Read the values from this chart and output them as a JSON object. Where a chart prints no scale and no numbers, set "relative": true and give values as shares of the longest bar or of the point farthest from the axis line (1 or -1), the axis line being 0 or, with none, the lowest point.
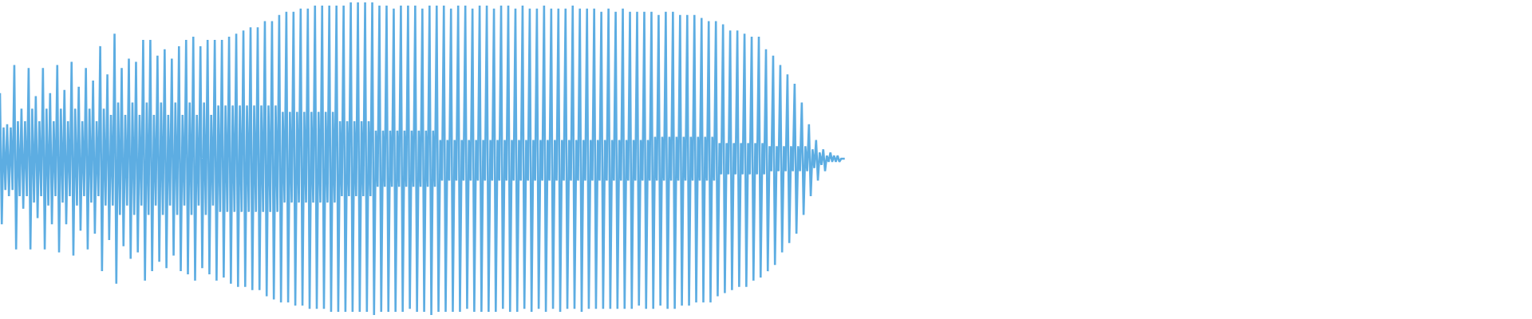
{
  "chart_data": {
    "type": "line",
    "relative": true,
    "categories": [
      null,
      null,
      null,
      null,
      null,
      null,
      null,
      null,
      null,
      null,
      null,
      null,
      null,
      null,
      null,
      null,
      null,
      null,
      null,
      null,
      null,
      null,
      null,
      null,
      null,
      null,
      null,
      null,
      null,
      null,
      null,
      null,
      null,
      null,
      null,
      null,
      null,
      null,
      null,
      null,
      null,
      null,
      null,
      null,
      null,
      null,
      null,
      null,
      null,
      null,
      null,
      null,
      null,
      null,
      null,
      null,
      null,
      null,
      null,
      null,
      null,
      null,
      null,
      null,
      null,
      null,
      null,
      null,
      null,
      null,
      null,
      null,
      null,
      null,
      null,
      null,
      null,
      null,
      null,
      null,
      null,
      null,
      null,
      null,
      null,
      null,
      null,
      null,
      null,
      null,
      null,
      null,
      null,
      null,
      null,
      null,
      null,
      null,
      null,
      null,
      null,
      null,
      null,
      null,
      null,
      null,
      null,
      null,
      null,
      null,
      null,
      null,
      null,
      null,
      null,
      null,
      null,
      null,
      null,
      null,
      null,
      null,
      null,
      null,
      null,
      null,
      null,
      null,
      null,
      null,
      null,
      null,
      null,
      null,
      null,
      null,
      null,
      null,
      null,
      null,
      null,
      null,
      null,
      null,
      null,
      null,
      null,
      null,
      null,
      null,
      null,
      null,
      null,
      null,
      null,
      null,
      null,
      null,
      null,
      null,
      null,
      null,
      null,
      null,
      null,
      null,
      null,
      null,
      null,
      null,
      null,
      null,
      null,
      null,
      null,
      null,
      null,
      null,
      null,
      null,
      null,
      null,
      null,
      null,
      null,
      null,
      null,
      null,
      null,
      null,
      null,
      null,
      null,
      null,
      null,
      null,
      null,
      null,
      null,
      null,
      null,
      null,
      null,
      null,
      null,
      null,
      null,
      null,
      null,
      null,
      null,
      null,
      null,
      null,
      null,
      null,
      null,
      null,
      null,
      null,
      null,
      null,
      null,
      null,
      null,
      null,
      null,
      null,
      null,
      null,
      null,
      null,
      null,
      null,
      null,
      null,
      null,
      null,
      null,
      null,
      null,
      null,
      null,
      null,
      null,
      null,
      null,
      null,
      null,
      null,
      null,
      null,
      null,
      null,
      null,
      null,
      null,
      null,
      null,
      null,
      null,
      null,
      null,
      null,
      null,
      null,
      null,
      null,
      null,
      null,
      null,
      null,
      null,
      null,
      null,
      null,
      null,
      null,
      null,
      null,
      null,
      null,
      null,
      null,
      null,
      null,
      null,
      null,
      null,
      null,
      null,
      null,
      null,
      null,
      null,
      null,
      null,
      null,
      null,
      null,
      null,
      null,
      null,
      null,
      null,
      null,
      null,
      null,
      null,
      null,
      null,
      null,
      null,
      null,
      null,
      null,
      null,
      null,
      null,
      null,
      null,
      null,
      null,
      null,
      null,
      null,
      null,
      null,
      null,
      null,
      null,
      null,
      null,
      null,
      null,
      null,
      null,
      null,
      null,
      null,
      null,
      null,
      null,
      null,
      null,
      null,
      null,
      null,
      null,
      null,
      null,
      null,
      null,
      null,
      null,
      null,
      null,
      null,
      null,
      null,
      null,
      null,
      null,
      null,
      null,
      null,
      null,
      null,
      null,
      null,
      null,
      null,
      null,
      null,
      null,
      null,
      null,
      null,
      null,
      null,
      null,
      null,
      null,
      null,
      null,
      null,
      null,
      null,
      null,
      null,
      null,
      null,
      null,
      null,
      null,
      null,
      null,
      null,
      null,
      null,
      null,
      null,
      null,
      null,
      null,
      null,
      null,
      null,
      null,
      null,
      null,
      null,
      null,
      null,
      null,
      null,
      null,
      null,
      null,
      null,
      null,
      null,
      null,
      null,
      null,
      null,
      null,
      null,
      null,
      null,
      null,
      null,
      null,
      null,
      null,
      null,
      null,
      null,
      null,
      null,
      null,
      null,
      null,
      null,
      null,
      null,
      null,
      null,
      null,
      null,
      null,
      null,
      null,
      null,
      null,
      null,
      null,
      null,
      null,
      null,
      null,
      null,
      null,
      null,
      null,
      null,
      null,
      null,
      null,
      null,
      null,
      null,
      null,
      null,
      null,
      null,
      null,
      null,
      null,
      null,
      null,
      null,
      null,
      null,
      null,
      null,
      null,
      null,
      null,
      null,
      null,
      null,
      null,
      null,
      null,
      null,
      null,
      null,
      null,
      null,
      null,
      null,
      null,
      null,
      null,
      null,
      null,
      null,
      null,
      null,
      null,
      null,
      null,
      null,
      null,
      null,
      null,
      null,
      null,
      null,
      null,
      null,
      null,
      null,
      null,
      null,
      null,
      null,
      null,
      null,
      null,
      null,
      null,
      null,
      null,
      null,
      null,
      null,
      null,
      null,
      null,
      null,
      null,
      null,
      null,
      null,
      null,
      null,
      null,
      null,
      null,
      null,
      null,
      null,
      null,
      null,
      null,
      null,
      null,
      null,
      null,
      null,
      null,
      null,
      null,
      null,
      null,
      null,
      null,
      null,
      null,
      null,
      null,
      null,
      null,
      null,
      null,
      null,
      null,
      null,
      null,
      null,
      null,
      null,
      null,
      null,
      null,
      null,
      null,
      null,
      null,
      null,
      null,
      null,
      null,
      null,
      null,
      null,
      null,
      null,
      null,
      null,
      null,
      null,
      null,
      null,
      null,
      null,
      null,
      null,
      null,
      null,
      null,
      null,
      null,
      null,
      null,
      null,
      null,
      null,
      null,
      null,
      null,
      null,
      null,
      null,
      null,
      null,
      null,
      null,
      null,
      null,
      null,
      null,
      null,
      null,
      null,
      null,
      null,
      null,
      null,
      null,
      null,
      null,
      null,
      null,
      null,
      null,
      null,
      null,
      null,
      null,
      null,
      null,
      null,
      null,
      null,
      null,
      null,
      null,
      null,
      null,
      null,
      null,
      null,
      null,
      null,
      null,
      null,
      null,
      null,
      null,
      null,
      null,
      null,
      null,
      null,
      null,
      null,
      null,
      null,
      null,
      null,
      null,
      null,
      null,
      null,
      null,
      null,
      null,
      null,
      null,
      null,
      null,
      null,
      null,
      null,
      null,
      null,
      null,
      null,
      null,
      null,
      null,
      null,
      null,
      null,
      null,
      null,
      null,
      null,
      null,
      null,
      null,
      null,
      null,
      null,
      null,
      null,
      null,
      null,
      null,
      null,
      null,
      null,
      null,
      null,
      null,
      null,
      null,
      null,
      null,
      null,
      null,
      null,
      null,
      null,
      null,
      null,
      null,
      null,
      null,
      null,
      null,
      null,
      null,
      null,
      null,
      null,
      null,
      null,
      null,
      null,
      null,
      null,
      null,
      null,
      null,
      null,
      null,
      null,
      null,
      null,
      null,
      null,
      null,
      null,
      null,
      null,
      null,
      null,
      null,
      null,
      null,
      null,
      null,
      null,
      null,
      null,
      null,
      null,
      null,
      null,
      null,
      null,
      null,
      null,
      null,
      null,
      null,
      null,
      null,
      null,
      null,
      null,
      null,
      null,
      null,
      null,
      null,
      null,
      null,
      null,
      null,
      null,
      null,
      null,
      null,
      null,
      null,
      null,
      null,
      null,
      null,
      null,
      null,
      null,
      null,
      null,
      null,
      null,
      null,
      null,
      null,
      null,
      null,
      null,
      null,
      null,
      null,
      null,
      null,
      null,
      null,
      null,
      null,
      null,
      null,
      null,
      null,
      null,
      null,
      null,
      null,
      null,
      null,
      null,
      null,
      null,
      null,
      null,
      null,
      null,
      null,
      null,
      null,
      null
    ],
    "series": [
      {
        "color": "#5dade2",
        "values": [
          0.71,
          0.29,
          0.6,
          0.4,
          0.61,
          0.38,
          0.6,
          0.4,
          0.8,
          0.21,
          0.62,
          0.38,
          0.66,
          0.34,
          0.62,
          0.38,
          0.79,
          0.21,
          0.66,
          0.36,
          0.7,
          0.31,
          0.62,
          0.38,
          0.79,
          0.21,
          0.66,
          0.35,
          0.71,
          0.29,
          0.62,
          0.38,
          0.8,
          0.2,
          0.66,
          0.36,
          0.72,
          0.29,
          0.62,
          0.38,
          0.81,
          0.19,
          0.66,
          0.35,
          0.73,
          0.27,
          0.62,
          0.38,
          0.79,
          0.21,
          0.66,
          0.36,
          0.75,
          0.26,
          0.62,
          0.38,
          0.86,
          0.14,
          0.66,
          0.35,
          0.77,
          0.24,
          0.64,
          0.35,
          0.9,
          0.1,
          0.68,
          0.32,
          0.79,
          0.22,
          0.64,
          0.35,
          0.82,
          0.18,
          0.68,
          0.32,
          0.81,
          0.2,
          0.64,
          0.35,
          0.88,
          0.11,
          0.68,
          0.32,
          0.88,
          0.14,
          0.64,
          0.35,
          0.83,
          0.17,
          0.68,
          0.32,
          0.85,
          0.15,
          0.64,
          0.35,
          0.82,
          0.19,
          0.68,
          0.32,
          0.86,
          0.14,
          0.64,
          0.35,
          0.88,
          0.13,
          0.68,
          0.32,
          0.89,
          0.11,
          0.64,
          0.35,
          0.86,
          0.15,
          0.68,
          0.32,
          0.88,
          0.13,
          0.64,
          0.35,
          0.88,
          0.11,
          0.67,
          0.33,
          0.88,
          0.12,
          0.67,
          0.33,
          0.89,
          0.1,
          0.67,
          0.33,
          0.9,
          0.09,
          0.67,
          0.33,
          0.91,
          0.09,
          0.67,
          0.33,
          0.92,
          0.08,
          0.67,
          0.33,
          0.92,
          0.08,
          0.67,
          0.33,
          0.94,
          0.06,
          0.67,
          0.33,
          0.94,
          0.05,
          0.67,
          0.33,
          0.96,
          0.04,
          0.65,
          0.36,
          0.97,
          0.04,
          0.65,
          0.36,
          0.97,
          0.03,
          0.65,
          0.36,
          0.98,
          0.03,
          0.65,
          0.36,
          0.98,
          0.02,
          0.65,
          0.36,
          0.99,
          0.02,
          0.65,
          0.36,
          0.99,
          0.02,
          0.65,
          0.36,
          0.99,
          0.01,
          0.65,
          0.36,
          0.99,
          0.01,
          0.62,
          0.38,
          0.99,
          0.01,
          0.62,
          0.38,
          1.0,
          0.01,
          0.62,
          0.38,
          1.0,
          0.01,
          0.62,
          0.38,
          1.0,
          0.01,
          0.62,
          0.38,
          1.0,
          0.0,
          0.59,
          0.41,
          0.99,
          0.01,
          0.59,
          0.41,
          0.99,
          0.01,
          0.59,
          0.41,
          0.98,
          0.01,
          0.59,
          0.41,
          0.99,
          0.01,
          0.59,
          0.41,
          0.99,
          0.02,
          0.59,
          0.41,
          0.99,
          0.01,
          0.59,
          0.41,
          0.98,
          0.01,
          0.59,
          0.41,
          0.99,
          0.0,
          0.59,
          0.41,
          0.99,
          0.01,
          0.56,
          0.43,
          0.99,
          0.01,
          0.56,
          0.43,
          0.98,
          0.01,
          0.56,
          0.43,
          0.99,
          0.01,
          0.56,
          0.43,
          0.99,
          0.02,
          0.56,
          0.43,
          0.98,
          0.01,
          0.56,
          0.43,
          0.99,
          0.01,
          0.56,
          0.43,
          0.99,
          0.01,
          0.56,
          0.43,
          0.98,
          0.01,
          0.56,
          0.43,
          0.99,
          0.02,
          0.56,
          0.43,
          0.99,
          0.01,
          0.56,
          0.43,
          0.98,
          0.01,
          0.56,
          0.43,
          0.99,
          0.02,
          0.56,
          0.43,
          0.98,
          0.01,
          0.56,
          0.43,
          0.98,
          0.02,
          0.56,
          0.43,
          0.99,
          0.01,
          0.56,
          0.43,
          0.98,
          0.02,
          0.56,
          0.43,
          0.98,
          0.01,
          0.56,
          0.43,
          0.98,
          0.02,
          0.56,
          0.43,
          0.99,
          0.02,
          0.56,
          0.43,
          0.98,
          0.01,
          0.56,
          0.43,
          0.98,
          0.02,
          0.56,
          0.43,
          0.98,
          0.02,
          0.56,
          0.43,
          0.97,
          0.02,
          0.56,
          0.43,
          0.98,
          0.02,
          0.56,
          0.43,
          0.97,
          0.02,
          0.56,
          0.43,
          0.98,
          0.02,
          0.56,
          0.43,
          0.97,
          0.02,
          0.56,
          0.43,
          0.97,
          0.03,
          0.56,
          0.43,
          0.97,
          0.02,
          0.56,
          0.43,
          0.97,
          0.02,
          0.57,
          0.43,
          0.96,
          0.03,
          0.57,
          0.43,
          0.97,
          0.02,
          0.57,
          0.43,
          0.97,
          0.02,
          0.57,
          0.43,
          0.96,
          0.03,
          0.57,
          0.43,
          0.96,
          0.03,
          0.57,
          0.43,
          0.96,
          0.04,
          0.57,
          0.43,
          0.95,
          0.04,
          0.57,
          0.43,
          0.94,
          0.04,
          0.57,
          0.43,
          0.94,
          0.06,
          0.55,
          0.45,
          0.93,
          0.07,
          0.55,
          0.45,
          0.91,
          0.08,
          0.55,
          0.45,
          0.91,
          0.09,
          0.55,
          0.45,
          0.9,
          0.09,
          0.55,
          0.45,
          0.89,
          0.11,
          0.55,
          0.45,
          0.89,
          0.12,
          0.55,
          0.45,
          0.85,
          0.14,
          0.54,
          0.46,
          0.83,
          0.16,
          0.54,
          0.46,
          0.8,
          0.2,
          0.54,
          0.46,
          0.77,
          0.23,
          0.54,
          0.46,
          0.74,
          0.26,
          0.54,
          0.46,
          0.68,
          0.32,
          0.54,
          0.46,
          0.61,
          0.38,
          0.53,
          0.47,
          0.56,
          0.43,
          0.52,
          0.48,
          0.53,
          0.46,
          0.51,
          0.49,
          0.52,
          0.49,
          0.51,
          0.49,
          0.51,
          0.49,
          0.5,
          0.5,
          0.5,
          null,
          null,
          null,
          null,
          null,
          null,
          null,
          null,
          null,
          null,
          null,
          null,
          null,
          null,
          null,
          null,
          null,
          null,
          null,
          null,
          null,
          null,
          null,
          null,
          null,
          null,
          null,
          null,
          null,
          null,
          null,
          null,
          null,
          null,
          null,
          null,
          null,
          null,
          null,
          null,
          null,
          null,
          null,
          null,
          null,
          null,
          null,
          null,
          null,
          null,
          null,
          null,
          null,
          null,
          null,
          null,
          null,
          null,
          null,
          null,
          null,
          null,
          null,
          null,
          null,
          null,
          null,
          null,
          null,
          null,
          null,
          null,
          null,
          null,
          null,
          null,
          null,
          null,
          null,
          null,
          null,
          null,
          null,
          null,
          null,
          null,
          null,
          null,
          null,
          null,
          null,
          null,
          null,
          null,
          null,
          null,
          null,
          null,
          null,
          null,
          null,
          null,
          null,
          null,
          null,
          null,
          null,
          null,
          null,
          null,
          null,
          null,
          null,
          null,
          null,
          null,
          null,
          null,
          null,
          null,
          null,
          null,
          null,
          null,
          null,
          null,
          null,
          null,
          null,
          null,
          null,
          null,
          null,
          null,
          null,
          null,
          null,
          null,
          null,
          null,
          null,
          null,
          null,
          null,
          null,
          null,
          null,
          null,
          null,
          null,
          null,
          null,
          null,
          null,
          null,
          null,
          null,
          null,
          null,
          null,
          null,
          null,
          null,
          null,
          null,
          null,
          null,
          null,
          null,
          null,
          null,
          null,
          null,
          null,
          null,
          null,
          null,
          null,
          null,
          null,
          null,
          null,
          null,
          null,
          null,
          null,
          null,
          null,
          null,
          null,
          null,
          null,
          null,
          null,
          null,
          null,
          null,
          null,
          null,
          null,
          null,
          null,
          null,
          null,
          null,
          null,
          null,
          null,
          null,
          null,
          null,
          null,
          null,
          null,
          null,
          null,
          null,
          null,
          null,
          null,
          null,
          null,
          null,
          null,
          null,
          null,
          null,
          null,
          null,
          null,
          null,
          null,
          null,
          null,
          null,
          null,
          null,
          null,
          null,
          null,
          null,
          null,
          null,
          null,
          null,
          null,
          null,
          null,
          null,
          null,
          null,
          null,
          null,
          null,
          null,
          null,
          null,
          null,
          null,
          null,
          null,
          null,
          null,
          null,
          null,
          null,
          null,
          null,
          null,
          null,
          null,
          null,
          null,
          null,
          null,
          null,
          null,
          null,
          null,
          null,
          null,
          null,
          null,
          null,
          null,
          null,
          null,
          null,
          null,
          null,
          null,
          null,
          null,
          null,
          null,
          null,
          null,
          null,
          null,
          null,
          null,
          null,
          null,
          null,
          null,
          null,
          null,
          null,
          null,
          null,
          null,
          null,
          null,
          null,
          null,
          null,
          null,
          null,
          null,
          null,
          null,
          null,
          null,
          null,
          null,
          null,
          null,
          null,
          null,
          null,
          null,
          null,
          null,
          null,
          null,
          null,
          null,
          null,
          null,
          null,
          null,
          null,
          null,
          null,
          null,
          null,
          null,
          null,
          null,
          null,
          null,
          null,
          null,
          null,
          null,
          null,
          null,
          null,
          null,
          null,
          null,
          null,
          null,
          null,
          null,
          null,
          null,
          null,
          null,
          null,
          null,
          null,
          null,
          null,
          null,
          null,
          null,
          null,
          null,
          null,
          null,
          null,
          null,
          null
        ]
      }
    ]
  }
}
